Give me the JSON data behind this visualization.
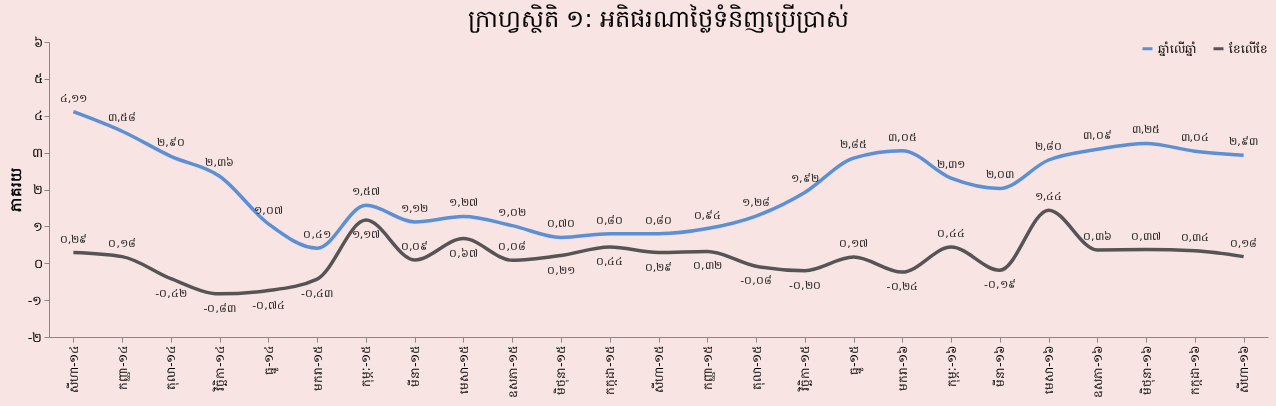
{
  "chart_data": {
    "type": "line",
    "title": "ក្រាហ្វស្ថិតិ ១: អតិផរណាថ្លៃទំនិញប្រើប្រាស់",
    "ylabel": "ភាគរយ",
    "categories": [
      "សីហា-១៤",
      "កញ្ញា-១៤",
      "តុលា-១៤",
      "វិច្ឆិកា-១៤",
      "ធ្នូ-១៤",
      "មករា-១៥",
      "កុម្ភៈ-១៥",
      "មីនា-១៥",
      "មេសា-១៥",
      "ឧសភា-១៥",
      "មិថុនា-១៥",
      "កក្កដា-១៥",
      "សីហា-១៥",
      "កញ្ញា-១៥",
      "តុលា-១៥",
      "វិច្ឆិកា-១៥",
      "ធ្នូ-១៥",
      "មករា-១៦",
      "កុម្ភៈ-១៦",
      "មីនា-១៦",
      "មេសា-១៦",
      "ឧសភា-១៦",
      "មិថុនា-១៦",
      "កក្កដា-១៦",
      "សីហា-១៦"
    ],
    "series": [
      {
        "name": "ឆ្នាំលើឆ្នាំ",
        "color": "#5b8fd6",
        "values": [
          4.11,
          3.58,
          2.9,
          2.36,
          1.07,
          0.41,
          1.57,
          1.12,
          1.27,
          1.02,
          0.7,
          0.8,
          0.8,
          0.94,
          1.28,
          1.92,
          2.85,
          3.05,
          2.31,
          2.03,
          2.8,
          3.09,
          3.25,
          3.04,
          2.93
        ],
        "value_labels": [
          "៤,១១",
          "៣,៥៨",
          "២,៩០",
          "២,៣៦",
          "១,០៧",
          "០,៤១",
          "១,៥៧",
          "១,១២",
          "១,២៧",
          "១,០២",
          "០,៧០",
          "០,៨០",
          "០,៨០",
          "០,៩៤",
          "១,២៨",
          "១,៩២",
          "២,៨៥",
          "៣,០៥",
          "២,៣១",
          "២,០៣",
          "២,៨០",
          "៣,០៩",
          "៣,២៥",
          "៣,០៤",
          "២,៩៣"
        ]
      },
      {
        "name": "ខែលើខែ",
        "color": "#555555",
        "values": [
          0.29,
          0.18,
          -0.42,
          -0.83,
          -0.74,
          -0.43,
          1.17,
          0.09,
          0.67,
          0.08,
          0.21,
          0.44,
          0.29,
          0.32,
          -0.08,
          -0.2,
          0.17,
          -0.24,
          0.44,
          -0.19,
          1.44,
          0.36,
          0.37,
          0.34,
          0.18
        ],
        "value_labels": [
          "០,២៩",
          "០,១៨",
          "-០,៤២",
          "-០,៨៣",
          "-០,៧៤",
          "-០,៤៣",
          "១,១៧",
          "០,០៩",
          "០,៦៧",
          "០,០៨",
          "០,២១",
          "០,៤៤",
          "០,២៩",
          "០,៣២",
          "-០,០៨",
          "-០,២០",
          "០,១៧",
          "-០,២៤",
          "០,៤៤",
          "-០,១៩",
          "១,៤៤",
          "០,៣៦",
          "០,៣៧",
          "០,៣៤",
          "០,១៨"
        ]
      }
    ],
    "ylim": [
      -2,
      6
    ],
    "yticks": [
      {
        "value": -2,
        "label": "-២"
      },
      {
        "value": -1,
        "label": "-១"
      },
      {
        "value": 0,
        "label": "០"
      },
      {
        "value": 1,
        "label": "១"
      },
      {
        "value": 2,
        "label": "២"
      },
      {
        "value": 3,
        "label": "៣"
      },
      {
        "value": 4,
        "label": "៤"
      },
      {
        "value": 5,
        "label": "៥"
      },
      {
        "value": 6,
        "label": "៦"
      }
    ],
    "legend": "top right",
    "grid": false,
    "marker": "none",
    "line_style": "solid"
  }
}
